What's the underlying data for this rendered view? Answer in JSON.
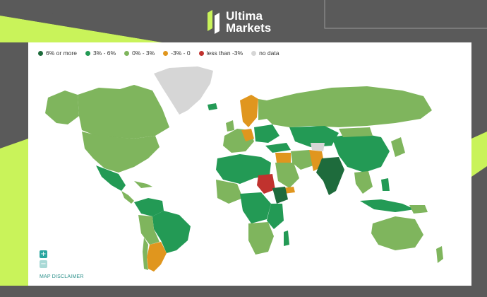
{
  "brand": {
    "line1": "Ultima",
    "line2": "Markets",
    "logo_icon": "ultima-markets-logo-icon"
  },
  "colors": {
    "six_or_more": "#1e6b3c",
    "three_to_six": "#239a55",
    "zero_to_three": "#7fb55d",
    "minus3_to_0": "#e0961e",
    "less_than_minus3": "#c0322e",
    "no_data": "#d6d6d6",
    "accent_lime": "#c9f35a"
  },
  "legend": {
    "items": [
      {
        "label": "6% or more",
        "color": "#1e6b3c"
      },
      {
        "label": "3% - 6%",
        "color": "#239a55"
      },
      {
        "label": "0% - 3%",
        "color": "#7fb55d"
      },
      {
        "label": "-3% - 0",
        "color": "#e0961e"
      },
      {
        "label": "less than -3%",
        "color": "#c0322e"
      },
      {
        "label": "no data",
        "color": "#d6d6d6"
      }
    ]
  },
  "controls": {
    "zoom_in": "+",
    "zoom_out": "−",
    "disclaimer": "MAP DISCLAIMER"
  }
}
